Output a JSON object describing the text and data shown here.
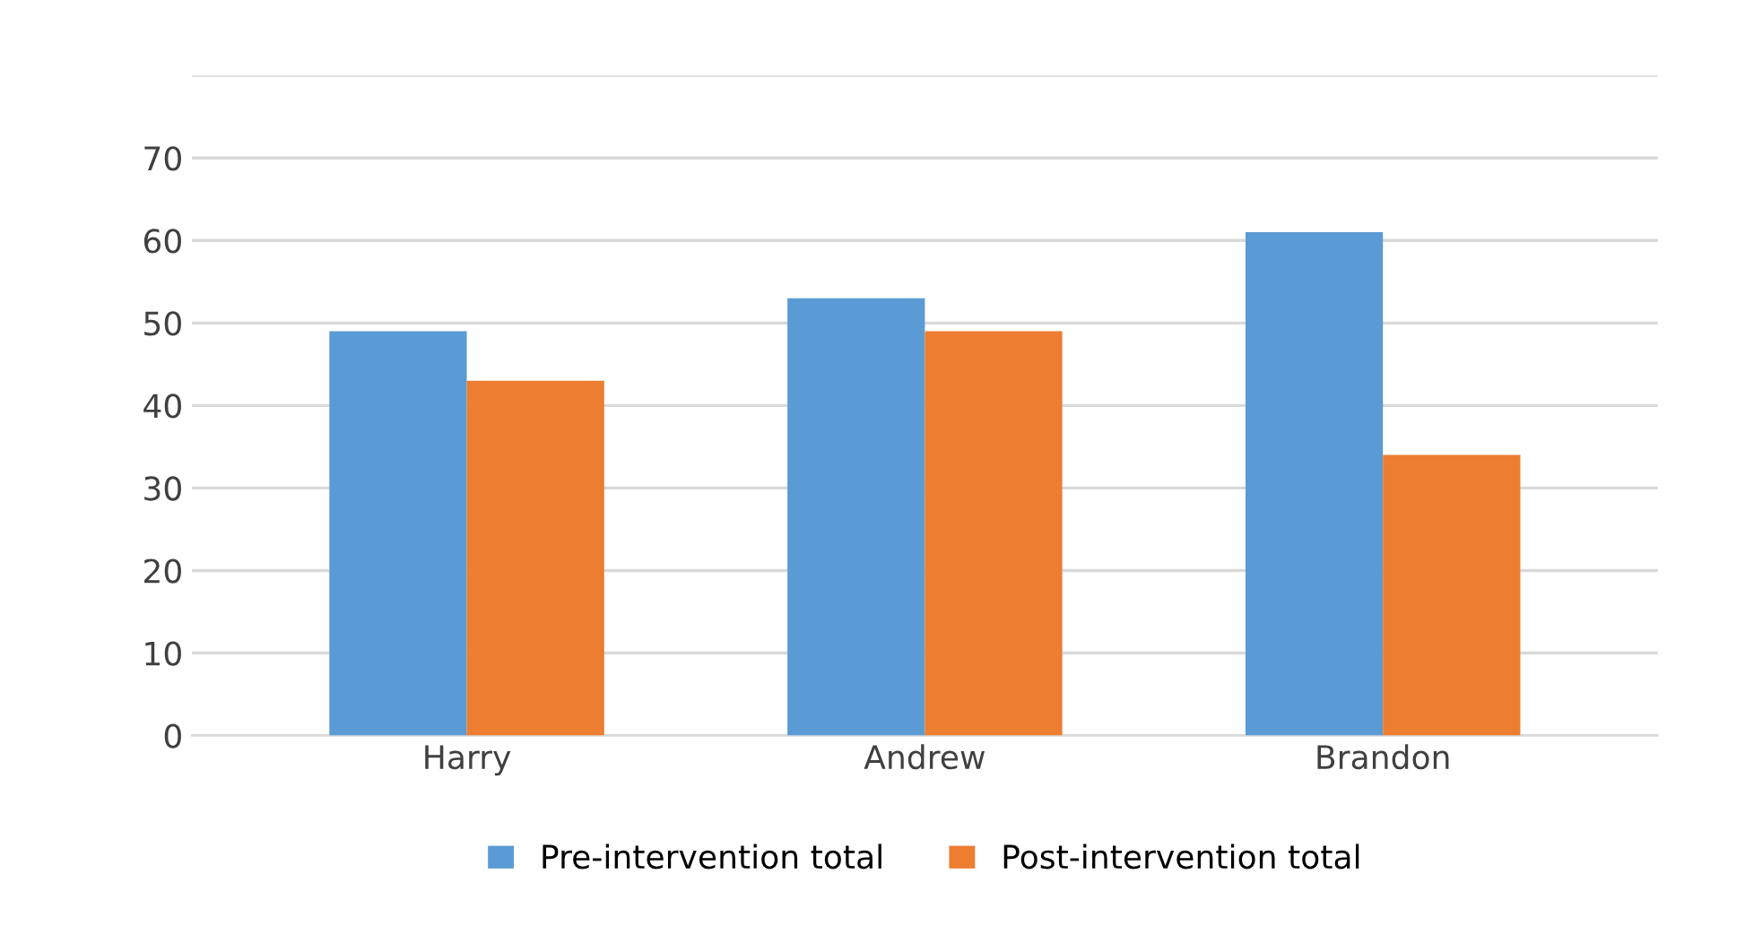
{
  "chart_data": {
    "type": "bar",
    "categories": [
      "Harry",
      "Andrew",
      "Brandon"
    ],
    "series": [
      {
        "name": "Pre-intervention total",
        "color": "#5b9bd5",
        "values": [
          49,
          53,
          61
        ]
      },
      {
        "name": "Post-intervention total",
        "color": "#ed7d31",
        "values": [
          43,
          49,
          34
        ]
      }
    ],
    "ylim": [
      0,
      80
    ],
    "yticks": [
      0,
      10,
      20,
      30,
      40,
      50,
      60,
      70,
      {
        "value": 80,
        "label": null
      }
    ],
    "grid": "y",
    "legend": "bottom"
  }
}
